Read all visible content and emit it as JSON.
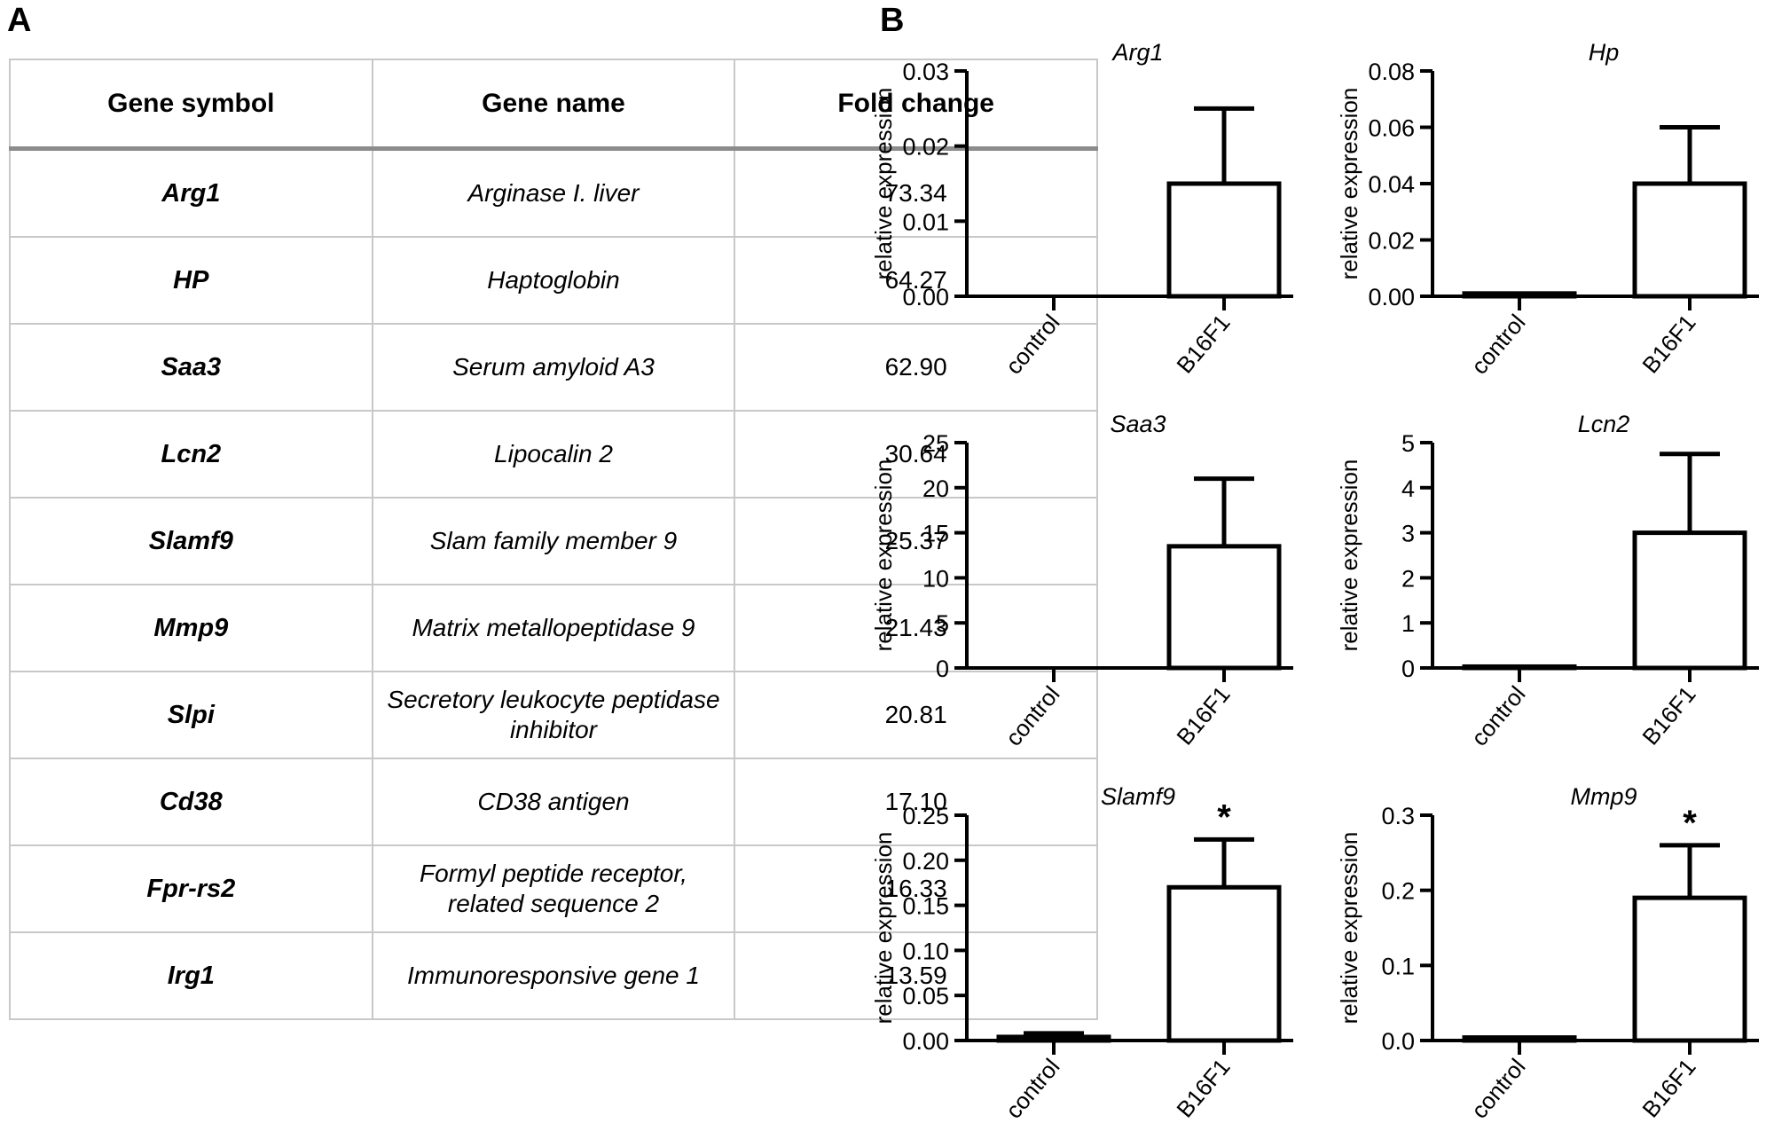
{
  "panel_labels": {
    "a": "A",
    "b": "B"
  },
  "table": {
    "headers": [
      "Gene symbol",
      "Gene name",
      "Fold change"
    ],
    "rows": [
      {
        "symbol": "Arg1",
        "name": "Arginase I. liver",
        "fold": "73.34"
      },
      {
        "symbol": "HP",
        "name": "Haptoglobin",
        "fold": "64.27"
      },
      {
        "symbol": "Saa3",
        "name": "Serum amyloid A3",
        "fold": "62.90"
      },
      {
        "symbol": "Lcn2",
        "name": "Lipocalin 2",
        "fold": "30.64"
      },
      {
        "symbol": "Slamf9",
        "name": "Slam family member 9",
        "fold": "25.37"
      },
      {
        "symbol": "Mmp9",
        "name": "Matrix metallopeptidase 9",
        "fold": "21.43"
      },
      {
        "symbol": "Slpi",
        "name": "Secretory leukocyte peptidase inhibitor",
        "fold": "20.81"
      },
      {
        "symbol": "Cd38",
        "name": "CD38 antigen",
        "fold": "17.10"
      },
      {
        "symbol": "Fpr-rs2",
        "name": "Formyl peptide receptor, related sequence 2",
        "fold": "16.33"
      },
      {
        "symbol": "Irg1",
        "name": "Immunoresponsive gene 1",
        "fold": "13.59"
      }
    ]
  },
  "chart_data": [
    {
      "type": "bar",
      "title": "Arg1",
      "ylabel": "relative expression",
      "categories": [
        "control",
        "B16F1"
      ],
      "values": [
        0,
        0.015
      ],
      "errors": [
        0,
        0.01
      ],
      "ylim": [
        0,
        0.03
      ],
      "ticks": [
        "0.00",
        "0.01",
        "0.02",
        "0.03"
      ],
      "significance": [
        "",
        ""
      ]
    },
    {
      "type": "bar",
      "title": "Hp",
      "ylabel": "relative expression",
      "categories": [
        "control",
        "B16F1"
      ],
      "values": [
        0.001,
        0.04
      ],
      "errors": [
        0,
        0.02
      ],
      "ylim": [
        0,
        0.08
      ],
      "ticks": [
        "0.00",
        "0.02",
        "0.04",
        "0.06",
        "0.08"
      ],
      "significance": [
        "",
        ""
      ]
    },
    {
      "type": "bar",
      "title": "Saa3",
      "ylabel": "relative expression",
      "categories": [
        "control",
        "B16F1"
      ],
      "values": [
        0,
        13.5
      ],
      "errors": [
        0,
        7.5
      ],
      "ylim": [
        0,
        25
      ],
      "ticks": [
        "0",
        "5",
        "10",
        "15",
        "20",
        "25"
      ],
      "significance": [
        "",
        ""
      ]
    },
    {
      "type": "bar",
      "title": "Lcn2",
      "ylabel": "relative expression",
      "categories": [
        "control",
        "B16F1"
      ],
      "values": [
        0.03,
        3.0
      ],
      "errors": [
        0,
        1.75
      ],
      "ylim": [
        0,
        5
      ],
      "ticks": [
        "0",
        "1",
        "2",
        "3",
        "4",
        "5"
      ],
      "significance": [
        "",
        ""
      ]
    },
    {
      "type": "bar",
      "title": "Slamf9",
      "ylabel": "relative expression",
      "categories": [
        "control",
        "B16F1"
      ],
      "values": [
        0.004,
        0.17
      ],
      "errors": [
        0.004,
        0.053
      ],
      "ylim": [
        0,
        0.25
      ],
      "ticks": [
        "0.00",
        "0.05",
        "0.10",
        "0.15",
        "0.20",
        "0.25"
      ],
      "significance": [
        "",
        "*"
      ]
    },
    {
      "type": "bar",
      "title": "Mmp9",
      "ylabel": "relative expression",
      "categories": [
        "control",
        "B16F1"
      ],
      "values": [
        0.004,
        0.19
      ],
      "errors": [
        0,
        0.07
      ],
      "ylim": [
        0,
        0.3
      ],
      "ticks": [
        "0.0",
        "0.1",
        "0.2",
        "0.3"
      ],
      "significance": [
        "",
        "*"
      ]
    }
  ]
}
